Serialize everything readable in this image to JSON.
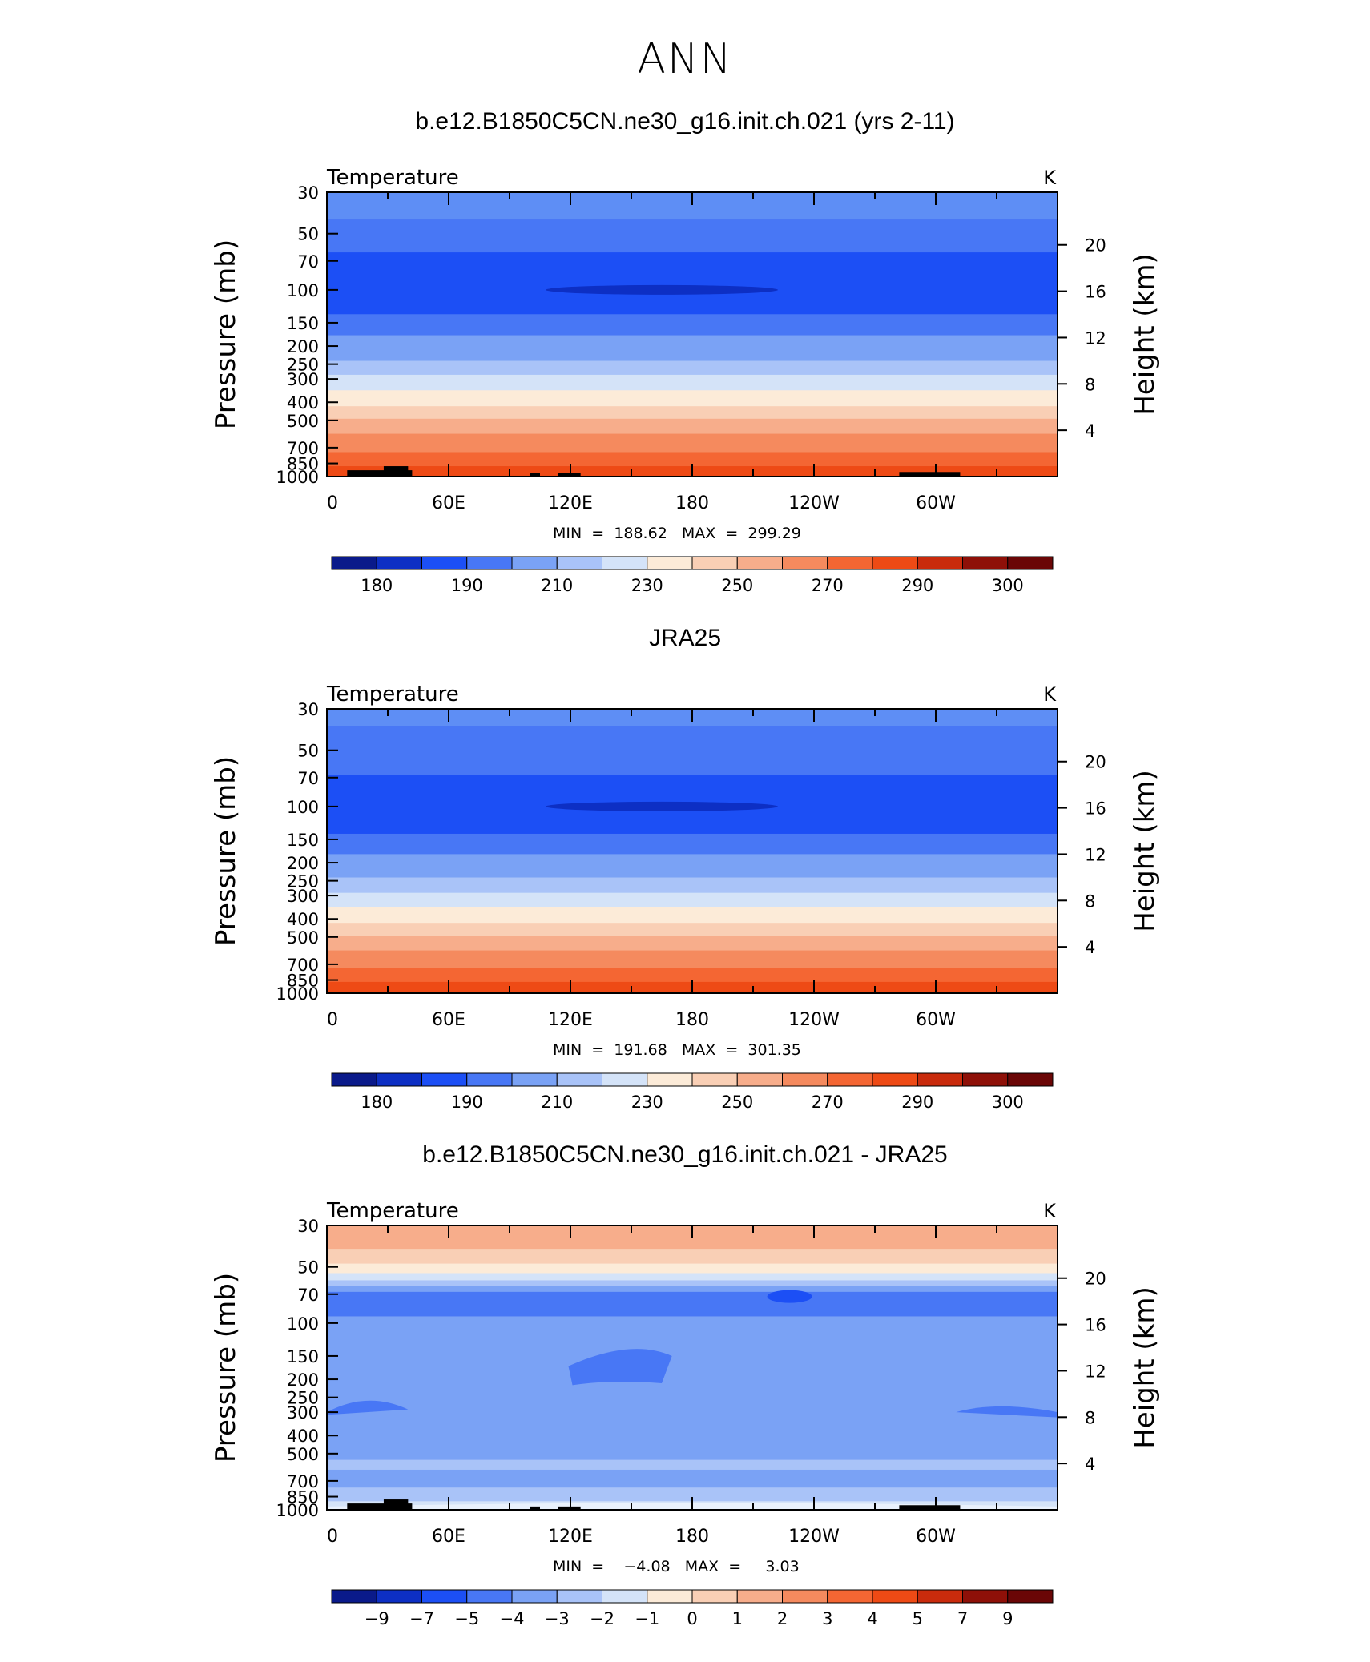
{
  "title": "ANN",
  "chart_data": [
    {
      "type": "heatmap",
      "title": "b.e12.B1850C5CN.ne30_g16.init.ch.021 (yrs 2-11)",
      "left_label": "Temperature",
      "right_label": "K",
      "ylabel": "Pressure  (mb)",
      "ylabel_right": "Height  (km)",
      "x_ticks": [
        "0",
        "60E",
        "120E",
        "180",
        "120W",
        "60W"
      ],
      "y_ticks": [
        "30",
        "50",
        "70",
        "100",
        "150",
        "200",
        "250",
        "300",
        "400",
        "500",
        "700",
        "850",
        "1000"
      ],
      "y2_ticks": [
        "20",
        "16",
        "12",
        "8",
        "4"
      ],
      "ylim": [
        1000,
        30
      ],
      "xlim": [
        0,
        360
      ],
      "min_label": "MIN",
      "min": "188.62",
      "max_label": "MAX",
      "max": "299.29",
      "colorbar_labels": [
        "180",
        "190",
        "210",
        "230",
        "250",
        "270",
        "290",
        "300"
      ],
      "levels": [
        {
          "p": 30,
          "c": "#5e8ef5"
        },
        {
          "p": 42,
          "c": "#4877f5"
        },
        {
          "p": 63,
          "c": "#1c4ff5"
        },
        {
          "p": 135,
          "c": "#4877f5"
        },
        {
          "p": 175,
          "c": "#7aa2f5"
        },
        {
          "p": 240,
          "c": "#a9c3f8"
        },
        {
          "p": 285,
          "c": "#d4e3f8"
        },
        {
          "p": 345,
          "c": "#fcebd8"
        },
        {
          "p": 420,
          "c": "#f9cfb5"
        },
        {
          "p": 490,
          "c": "#f7ad8b"
        },
        {
          "p": 590,
          "c": "#f58a5e"
        },
        {
          "p": 740,
          "c": "#f46633"
        },
        {
          "p": 880,
          "c": "#ee4a15"
        }
      ]
    },
    {
      "type": "heatmap",
      "title": "JRA25",
      "left_label": "Temperature",
      "right_label": "K",
      "ylabel": "Pressure  (mb)",
      "ylabel_right": "Height  (km)",
      "x_ticks": [
        "0",
        "60E",
        "120E",
        "180",
        "120W",
        "60W"
      ],
      "y_ticks": [
        "30",
        "50",
        "70",
        "100",
        "150",
        "200",
        "250",
        "300",
        "400",
        "500",
        "700",
        "850",
        "1000"
      ],
      "y2_ticks": [
        "20",
        "16",
        "12",
        "8",
        "4"
      ],
      "ylim": [
        1000,
        30
      ],
      "xlim": [
        0,
        360
      ],
      "min_label": "MIN",
      "min": "191.68",
      "max_label": "MAX",
      "max": "301.35",
      "colorbar_labels": [
        "180",
        "190",
        "210",
        "230",
        "250",
        "270",
        "290",
        "300"
      ],
      "levels": [
        {
          "p": 30,
          "c": "#5e8ef5"
        },
        {
          "p": 37,
          "c": "#4877f5"
        },
        {
          "p": 68,
          "c": "#1c4ff5"
        },
        {
          "p": 140,
          "c": "#4877f5"
        },
        {
          "p": 180,
          "c": "#7aa2f5"
        },
        {
          "p": 240,
          "c": "#a9c3f8"
        },
        {
          "p": 290,
          "c": "#d4e3f8"
        },
        {
          "p": 345,
          "c": "#fcebd8"
        },
        {
          "p": 420,
          "c": "#f9cfb5"
        },
        {
          "p": 495,
          "c": "#f7ad8b"
        },
        {
          "p": 590,
          "c": "#f58a5e"
        },
        {
          "p": 730,
          "c": "#f46633"
        },
        {
          "p": 870,
          "c": "#ee4a15"
        }
      ]
    },
    {
      "type": "heatmap",
      "title": "b.e12.B1850C5CN.ne30_g16.init.ch.021 - JRA25",
      "left_label": "Temperature",
      "right_label": "K",
      "ylabel": "Pressure  (mb)",
      "ylabel_right": "Height  (km)",
      "x_ticks": [
        "0",
        "60E",
        "120E",
        "180",
        "120W",
        "60W"
      ],
      "y_ticks": [
        "30",
        "50",
        "70",
        "100",
        "150",
        "200",
        "250",
        "300",
        "400",
        "500",
        "700",
        "850",
        "1000"
      ],
      "y2_ticks": [
        "20",
        "16",
        "12",
        "8",
        "4"
      ],
      "ylim": [
        1000,
        30
      ],
      "xlim": [
        0,
        360
      ],
      "min_label": "MIN",
      "min": "−4.08",
      "max_label": "MAX",
      "max": "3.03",
      "colorbar_labels": [
        "−9",
        "−7",
        "−5",
        "−4",
        "−3",
        "−2",
        "−1",
        "0",
        "1",
        "2",
        "3",
        "4",
        "5",
        "7",
        "9"
      ],
      "levels": [
        {
          "p": 30,
          "c": "#f7ad8b"
        },
        {
          "p": 40,
          "c": "#f9cfb5"
        },
        {
          "p": 48,
          "c": "#fcebd8"
        },
        {
          "p": 54,
          "c": "#d4e3f8"
        },
        {
          "p": 59,
          "c": "#a9c3f8"
        },
        {
          "p": 63,
          "c": "#7aa2f5"
        },
        {
          "p": 68,
          "c": "#4877f5"
        },
        {
          "p": 92,
          "c": "#7aa2f5"
        },
        {
          "p": 540,
          "c": "#a9c3f8"
        },
        {
          "p": 610,
          "c": "#7aa2f5"
        },
        {
          "p": 760,
          "c": "#a9c3f8"
        },
        {
          "p": 900,
          "c": "#d4e3f8"
        }
      ]
    }
  ],
  "colorbar_colors": [
    "#0a1a8a",
    "#0d2fc4",
    "#1c4ff5",
    "#4877f5",
    "#7aa2f5",
    "#a9c3f8",
    "#d4e3f8",
    "#fcebd8",
    "#f9cfb5",
    "#f7ad8b",
    "#f58a5e",
    "#f46633",
    "#ee4a15",
    "#c92b0c",
    "#8e1008",
    "#6a0606"
  ]
}
